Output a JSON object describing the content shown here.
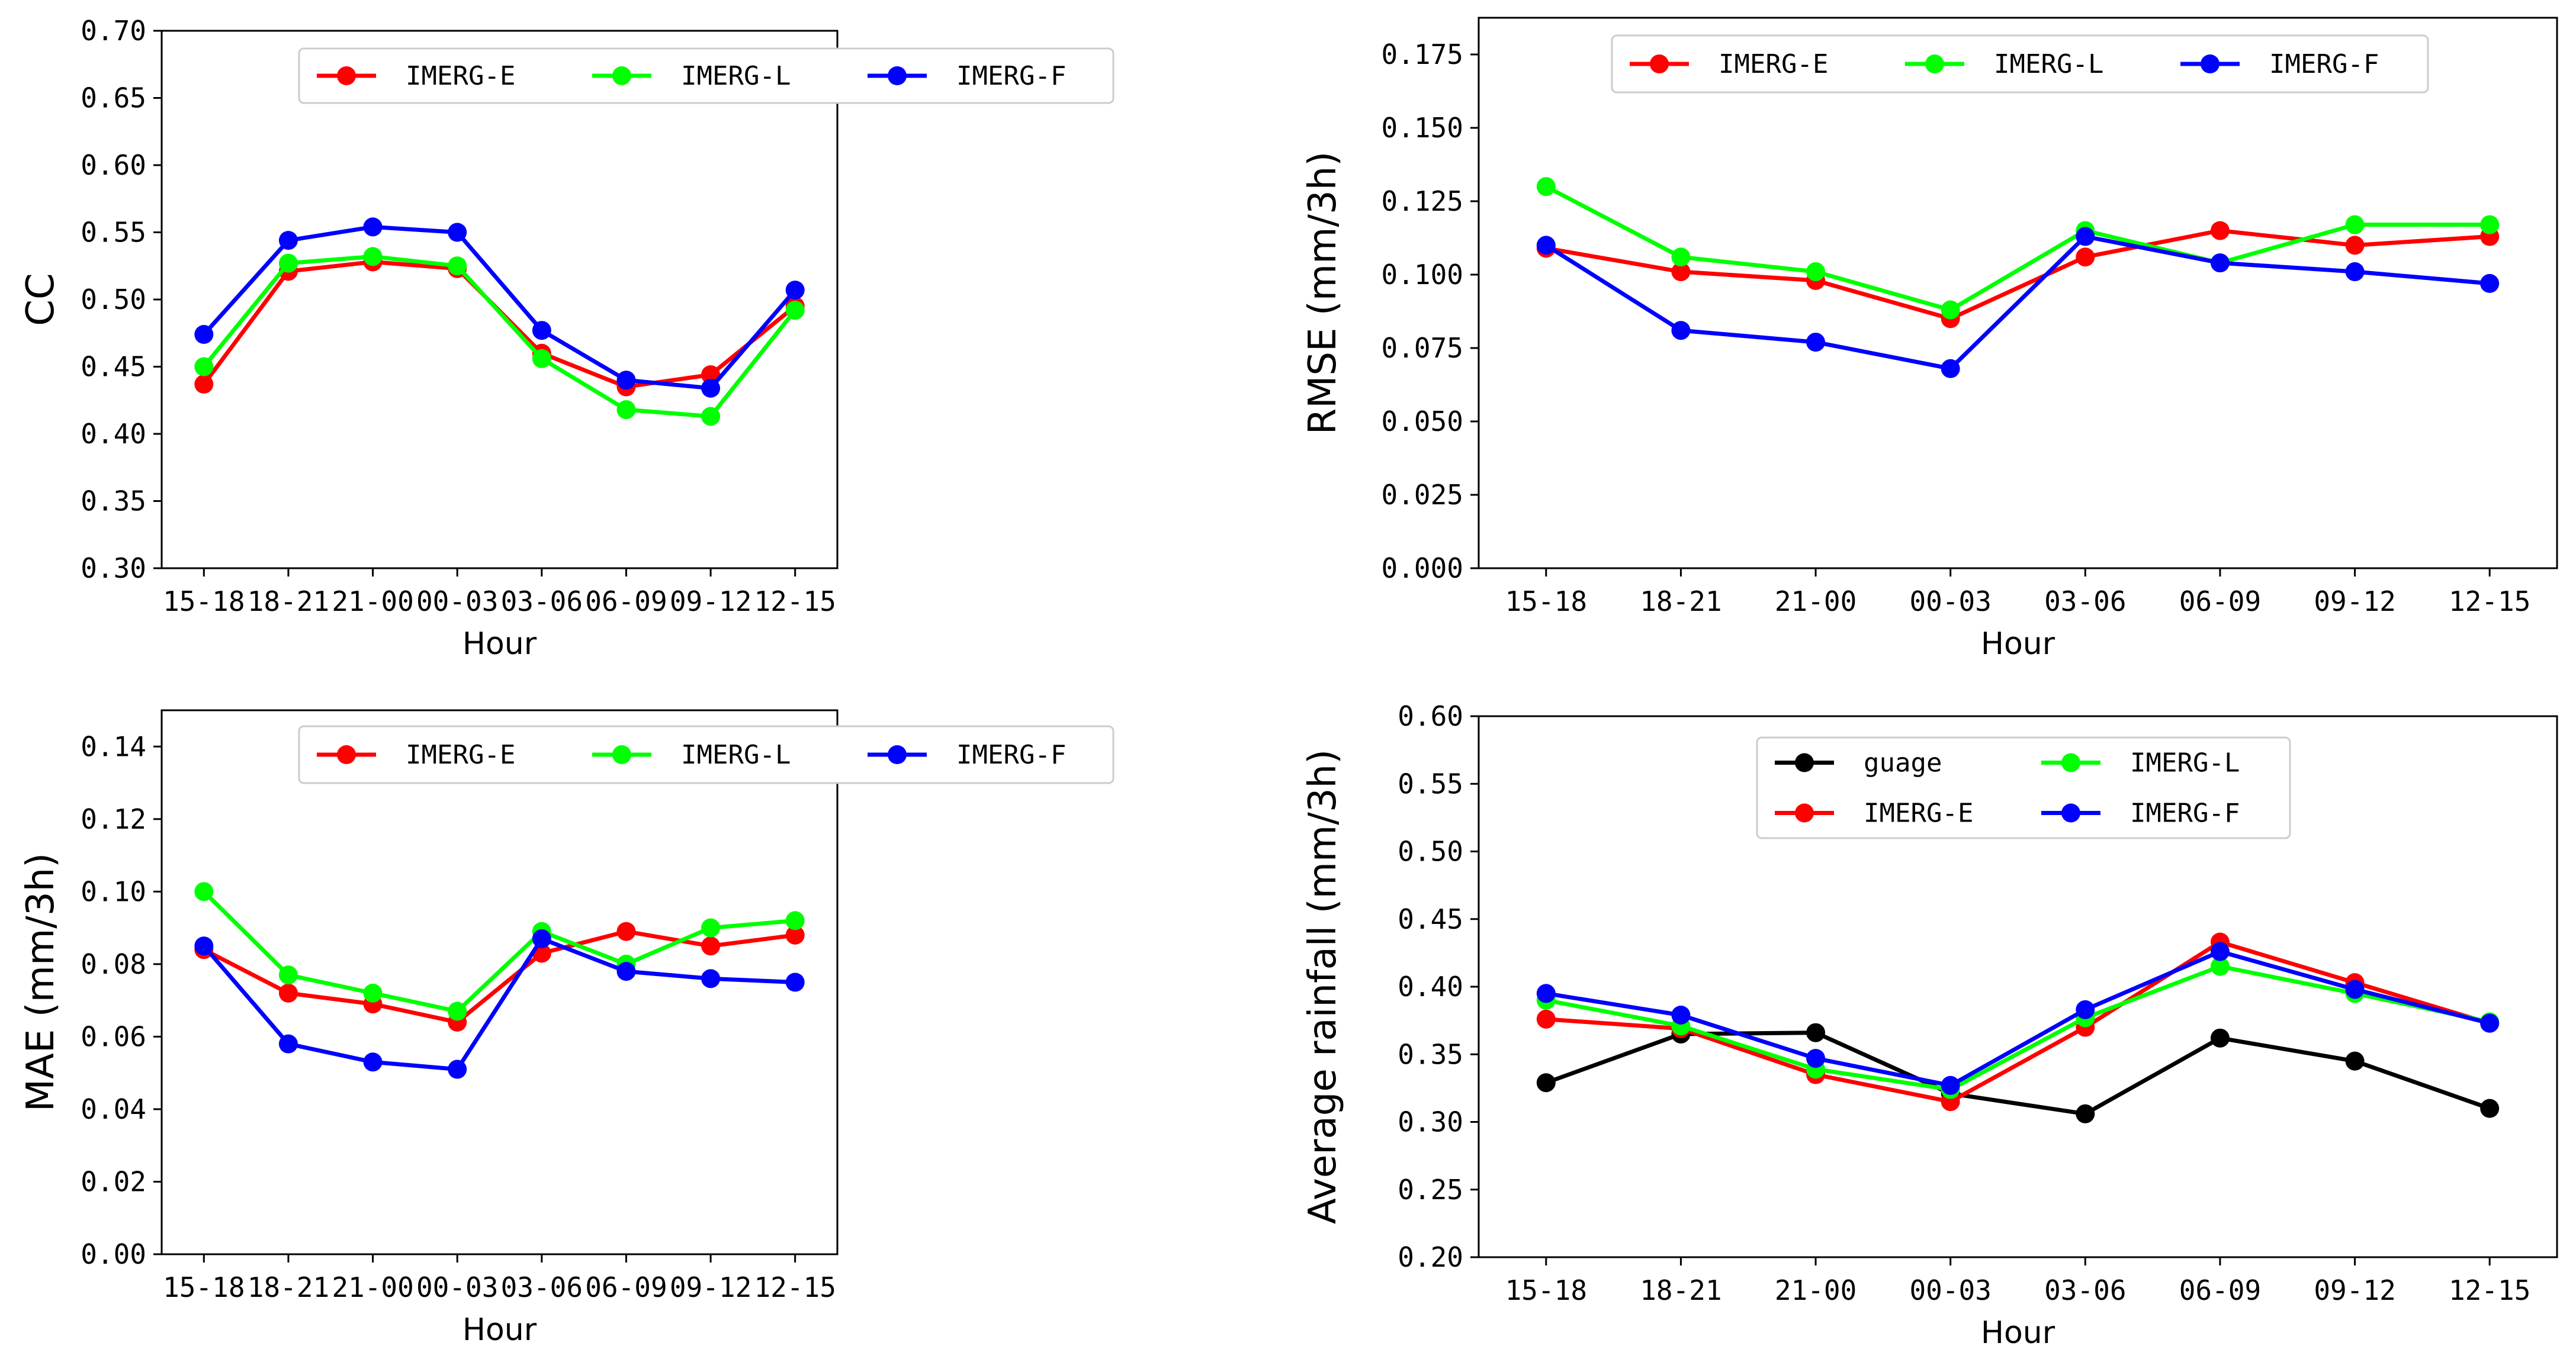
{
  "chart_data": [
    {
      "type": "line",
      "ylabel": "CC",
      "xlabel": "Hour",
      "ylim": [
        0.3,
        0.7
      ],
      "yticks": [
        "0.30",
        "0.35",
        "0.40",
        "0.45",
        "0.50",
        "0.55",
        "0.60",
        "0.65",
        "0.70"
      ],
      "categories": [
        "15-18",
        "18-21",
        "21-00",
        "00-03",
        "03-06",
        "06-09",
        "09-12",
        "12-15"
      ],
      "legend_location": "upper-center",
      "legend_columns": 3,
      "series": [
        {
          "name": "IMERG-E",
          "color": "#ff0000",
          "values": [
            0.437,
            0.521,
            0.528,
            0.523,
            0.46,
            0.435,
            0.444,
            0.495
          ]
        },
        {
          "name": "IMERG-L",
          "color": "#00ff00",
          "values": [
            0.45,
            0.527,
            0.532,
            0.525,
            0.456,
            0.418,
            0.413,
            0.492
          ]
        },
        {
          "name": "IMERG-F",
          "color": "#0000ff",
          "values": [
            0.474,
            0.544,
            0.554,
            0.55,
            0.477,
            0.44,
            0.434,
            0.507
          ]
        }
      ]
    },
    {
      "type": "line",
      "ylabel": "RMSE (mm/3h)",
      "xlabel": "Hour",
      "ylim": [
        0.0,
        0.1875
      ],
      "yticks": [
        "0.000",
        "0.025",
        "0.050",
        "0.075",
        "0.100",
        "0.125",
        "0.150",
        "0.175"
      ],
      "categories": [
        "15-18",
        "18-21",
        "21-00",
        "00-03",
        "03-06",
        "06-09",
        "09-12",
        "12-15"
      ],
      "legend_location": "upper-center",
      "legend_columns": 3,
      "series": [
        {
          "name": "IMERG-E",
          "color": "#ff0000",
          "values": [
            0.109,
            0.101,
            0.098,
            0.085,
            0.106,
            0.115,
            0.11,
            0.113
          ]
        },
        {
          "name": "IMERG-L",
          "color": "#00ff00",
          "values": [
            0.13,
            0.106,
            0.101,
            0.088,
            0.115,
            0.104,
            0.117,
            0.117
          ]
        },
        {
          "name": "IMERG-F",
          "color": "#0000ff",
          "values": [
            0.11,
            0.081,
            0.077,
            0.068,
            0.113,
            0.104,
            0.101,
            0.097
          ]
        }
      ]
    },
    {
      "type": "line",
      "ylabel": "MAE (mm/3h)",
      "xlabel": "Hour",
      "ylim": [
        0.0,
        0.15
      ],
      "yticks": [
        "0.00",
        "0.02",
        "0.04",
        "0.06",
        "0.08",
        "0.10",
        "0.12",
        "0.14"
      ],
      "categories": [
        "15-18",
        "18-21",
        "21-00",
        "00-03",
        "03-06",
        "06-09",
        "09-12",
        "12-15"
      ],
      "legend_location": "upper-center",
      "legend_columns": 3,
      "series": [
        {
          "name": "IMERG-E",
          "color": "#ff0000",
          "values": [
            0.084,
            0.072,
            0.069,
            0.064,
            0.083,
            0.089,
            0.085,
            0.088
          ]
        },
        {
          "name": "IMERG-L",
          "color": "#00ff00",
          "values": [
            0.1,
            0.077,
            0.072,
            0.067,
            0.089,
            0.08,
            0.09,
            0.092
          ]
        },
        {
          "name": "IMERG-F",
          "color": "#0000ff",
          "values": [
            0.085,
            0.058,
            0.053,
            0.051,
            0.087,
            0.078,
            0.076,
            0.075
          ]
        }
      ]
    },
    {
      "type": "line",
      "ylabel": "Average rainfall (mm/3h)",
      "xlabel": "Hour",
      "ylim": [
        0.2,
        0.6
      ],
      "yticks": [
        "0.20",
        "0.25",
        "0.30",
        "0.35",
        "0.40",
        "0.45",
        "0.50",
        "0.55",
        "0.60"
      ],
      "categories": [
        "15-18",
        "18-21",
        "21-00",
        "00-03",
        "03-06",
        "06-09",
        "09-12",
        "12-15"
      ],
      "legend_location": "upper-center",
      "legend_columns": 2,
      "series": [
        {
          "name": "guage",
          "color": "#000000",
          "values": [
            0.329,
            0.365,
            0.366,
            0.321,
            0.306,
            0.362,
            0.345,
            0.31
          ]
        },
        {
          "name": "IMERG-E",
          "color": "#ff0000",
          "values": [
            0.376,
            0.369,
            0.335,
            0.315,
            0.37,
            0.433,
            0.403,
            0.373
          ]
        },
        {
          "name": "IMERG-L",
          "color": "#00ff00",
          "values": [
            0.39,
            0.371,
            0.339,
            0.324,
            0.377,
            0.415,
            0.395,
            0.374
          ]
        },
        {
          "name": "IMERG-F",
          "color": "#0000ff",
          "values": [
            0.395,
            0.379,
            0.347,
            0.327,
            0.383,
            0.426,
            0.398,
            0.373
          ]
        }
      ]
    }
  ]
}
